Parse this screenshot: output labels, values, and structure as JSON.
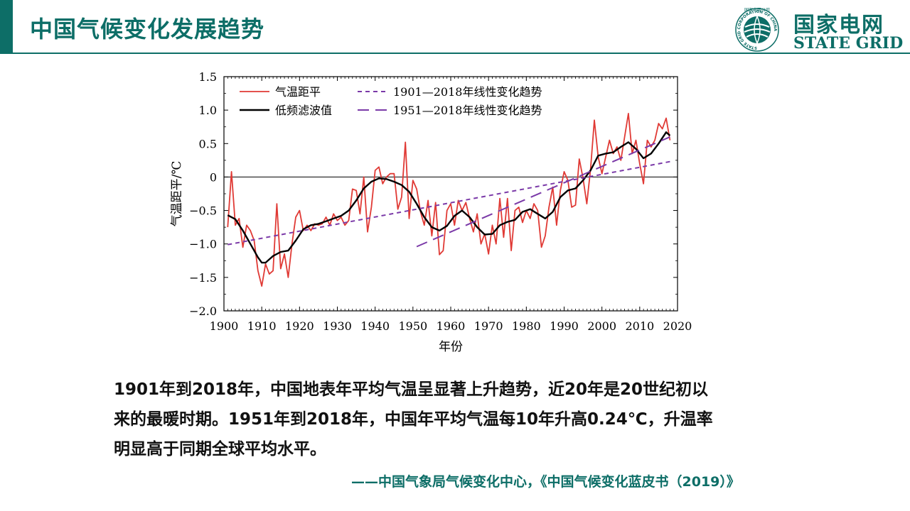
{
  "header": {
    "title": "中国气候变化发展趋势",
    "logo_cn": "国家电网",
    "logo_en": "STATE GRID",
    "logo_ring_text": "STATE GRID CORPORATION OF CHINA",
    "logo_top_text": "国家电网公司",
    "accent_color": "#0d6e67"
  },
  "chart_data": {
    "type": "line",
    "xlabel": "年份",
    "ylabel": "气温距平/℃",
    "xlim": [
      1900,
      2020
    ],
    "ylim": [
      -2.0,
      1.5
    ],
    "xticks": [
      "1900",
      "1910",
      "1920",
      "1930",
      "1940",
      "1950",
      "1960",
      "1970",
      "1980",
      "1990",
      "2000",
      "2010",
      "2020"
    ],
    "yticks": [
      "1.5",
      "1.0",
      "0.5",
      "0",
      "−0.5",
      "−1.0",
      "−1.5",
      "−2.0"
    ],
    "legend_position": "top-left",
    "series": [
      {
        "name": "气温距平",
        "color": "#e03a35",
        "x": [
          1901,
          1902,
          1903,
          1904,
          1905,
          1906,
          1907,
          1908,
          1909,
          1910,
          1911,
          1912,
          1913,
          1914,
          1915,
          1916,
          1917,
          1918,
          1919,
          1920,
          1921,
          1922,
          1923,
          1924,
          1925,
          1926,
          1927,
          1928,
          1929,
          1930,
          1931,
          1932,
          1933,
          1934,
          1935,
          1936,
          1937,
          1938,
          1939,
          1940,
          1941,
          1942,
          1943,
          1944,
          1945,
          1946,
          1947,
          1948,
          1949,
          1950,
          1951,
          1952,
          1953,
          1954,
          1955,
          1956,
          1957,
          1958,
          1959,
          1960,
          1961,
          1962,
          1963,
          1964,
          1965,
          1966,
          1967,
          1968,
          1969,
          1970,
          1971,
          1972,
          1973,
          1974,
          1975,
          1976,
          1977,
          1978,
          1979,
          1980,
          1981,
          1982,
          1983,
          1984,
          1985,
          1986,
          1987,
          1988,
          1989,
          1990,
          1991,
          1992,
          1993,
          1994,
          1995,
          1996,
          1997,
          1998,
          1999,
          2000,
          2001,
          2002,
          2003,
          2004,
          2005,
          2006,
          2007,
          2008,
          2009,
          2010,
          2011,
          2012,
          2013,
          2014,
          2015,
          2016,
          2017,
          2018
        ],
        "values": [
          -0.75,
          0.08,
          -0.72,
          -0.62,
          -1.05,
          -0.72,
          -0.8,
          -0.95,
          -1.4,
          -1.63,
          -1.3,
          -1.45,
          -1.4,
          -0.4,
          -1.37,
          -1.15,
          -1.5,
          -1.0,
          -0.6,
          -0.5,
          -0.8,
          -0.72,
          -0.8,
          -0.7,
          -0.72,
          -0.7,
          -0.6,
          -0.72,
          -0.55,
          -0.65,
          -0.6,
          -0.72,
          -0.65,
          -0.18,
          -0.2,
          -0.55,
          0.0,
          -0.82,
          -0.45,
          0.1,
          0.15,
          -0.1,
          0.0,
          0.05,
          0.05,
          -0.48,
          -0.3,
          0.52,
          -0.62,
          -0.05,
          -0.18,
          -0.52,
          -0.72,
          -0.35,
          -0.88,
          -0.38,
          -1.16,
          -1.1,
          -0.5,
          -0.4,
          -0.72,
          -0.35,
          -0.5,
          -0.38,
          -0.62,
          -0.82,
          -0.55,
          -1.0,
          -0.85,
          -1.15,
          -0.72,
          -1.0,
          -0.32,
          -0.9,
          -0.32,
          -1.1,
          -0.5,
          -0.45,
          -0.68,
          -0.5,
          -0.62,
          -0.4,
          -0.5,
          -1.05,
          -0.88,
          -0.45,
          -0.15,
          -0.72,
          -0.2,
          0.08,
          -0.05,
          -0.45,
          -0.42,
          0.27,
          -0.02,
          -0.4,
          0.12,
          0.85,
          0.3,
          0.05,
          0.3,
          0.55,
          0.35,
          0.45,
          0.25,
          0.6,
          0.95,
          0.35,
          0.55,
          0.2,
          -0.1,
          0.55,
          0.45,
          0.55,
          0.8,
          0.72,
          0.88,
          0.55
        ]
      },
      {
        "name": "低频滤波值",
        "color": "#000000",
        "x": [
          1901,
          1903,
          1905,
          1907,
          1909,
          1910,
          1911,
          1913,
          1915,
          1917,
          1919,
          1921,
          1923,
          1925,
          1927,
          1929,
          1931,
          1933,
          1935,
          1937,
          1939,
          1941,
          1943,
          1945,
          1947,
          1949,
          1951,
          1953,
          1955,
          1957,
          1959,
          1961,
          1963,
          1965,
          1967,
          1969,
          1971,
          1973,
          1975,
          1977,
          1979,
          1981,
          1983,
          1985,
          1987,
          1989,
          1991,
          1993,
          1995,
          1997,
          1999,
          2001,
          2003,
          2005,
          2007,
          2009,
          2011,
          2013,
          2015,
          2017,
          2018
        ],
        "values": [
          -0.57,
          -0.63,
          -0.8,
          -1.0,
          -1.2,
          -1.28,
          -1.28,
          -1.18,
          -1.12,
          -1.1,
          -0.95,
          -0.78,
          -0.72,
          -0.7,
          -0.66,
          -0.62,
          -0.58,
          -0.5,
          -0.35,
          -0.17,
          -0.07,
          -0.02,
          -0.03,
          -0.07,
          -0.12,
          -0.22,
          -0.4,
          -0.6,
          -0.75,
          -0.8,
          -0.73,
          -0.58,
          -0.5,
          -0.6,
          -0.75,
          -0.86,
          -0.85,
          -0.72,
          -0.67,
          -0.64,
          -0.52,
          -0.48,
          -0.55,
          -0.62,
          -0.52,
          -0.3,
          -0.2,
          -0.17,
          -0.05,
          0.1,
          0.32,
          0.35,
          0.37,
          0.45,
          0.52,
          0.42,
          0.28,
          0.35,
          0.5,
          0.67,
          0.62
        ]
      },
      {
        "name": "1901—2018年线性变化趋势",
        "color": "#7b3aa8",
        "style": "short-dash",
        "x": [
          1901,
          2018
        ],
        "values": [
          -1.01,
          0.23
        ]
      },
      {
        "name": "1951—2018年线性变化趋势",
        "color": "#7b3aa8",
        "style": "long-dash",
        "x": [
          1951,
          2018
        ],
        "values": [
          -1.04,
          0.6
        ]
      }
    ]
  },
  "body": {
    "line1": "1901年到2018年，中国地表年平均气温呈显著上升趋势，近20年是20世纪初以",
    "line2": "来的最暖时期。1951年到2018年，中国年平均气温每10年升高0.24℃，升温率",
    "line3": "明显高于同期全球平均水平。",
    "source": "——中国气象局气候变化中心，《中国气候变化蓝皮书（2019）》"
  }
}
